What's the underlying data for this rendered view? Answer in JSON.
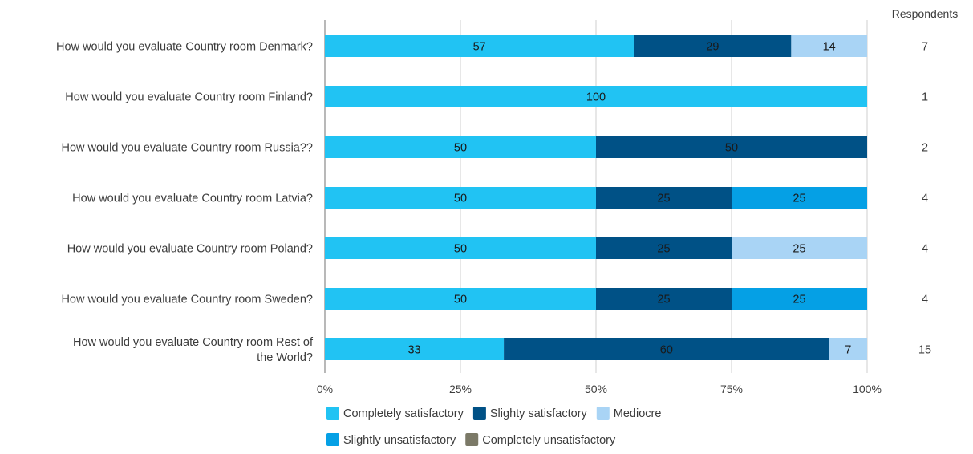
{
  "chart_data": {
    "type": "bar",
    "orientation": "horizontal",
    "stacked": true,
    "normalized_percent": true,
    "categories": [
      "How would you evaluate Country room Denmark?",
      "How would you evaluate Country room Finland?",
      "How would you evaluate Country room Russia??",
      "How would you evaluate Country room Latvia?",
      "How would you evaluate Country room Poland?",
      "How would you evaluate Country room Sweden?",
      [
        "How would you evaluate Country room Rest of",
        "the World?"
      ]
    ],
    "series": [
      {
        "name": "Completely satisfactory",
        "color": "#21c3f3",
        "values": [
          57,
          100,
          50,
          50,
          50,
          50,
          33
        ]
      },
      {
        "name": "Slighty satisfactory",
        "color": "#005186",
        "values": [
          29,
          0,
          50,
          25,
          25,
          25,
          60
        ]
      },
      {
        "name": "Mediocre",
        "color": "#a9d4f5",
        "values": [
          14,
          0,
          0,
          0,
          25,
          0,
          7
        ]
      },
      {
        "name": "Slightly unsatisfactory",
        "color": "#05a0e5",
        "values": [
          0,
          0,
          0,
          25,
          0,
          25,
          0
        ]
      },
      {
        "name": "Completely unsatisfactory",
        "color": "#7b7967",
        "values": [
          0,
          0,
          0,
          0,
          0,
          0,
          0
        ]
      }
    ],
    "respondents_label": "Respondents",
    "respondents": [
      7,
      1,
      2,
      4,
      4,
      4,
      15
    ],
    "x_ticks": [
      "0%",
      "25%",
      "50%",
      "75%",
      "100%"
    ],
    "xlim": [
      0,
      100
    ],
    "grid": true,
    "legend_position": "bottom",
    "title": "",
    "xlabel": "",
    "ylabel": ""
  }
}
